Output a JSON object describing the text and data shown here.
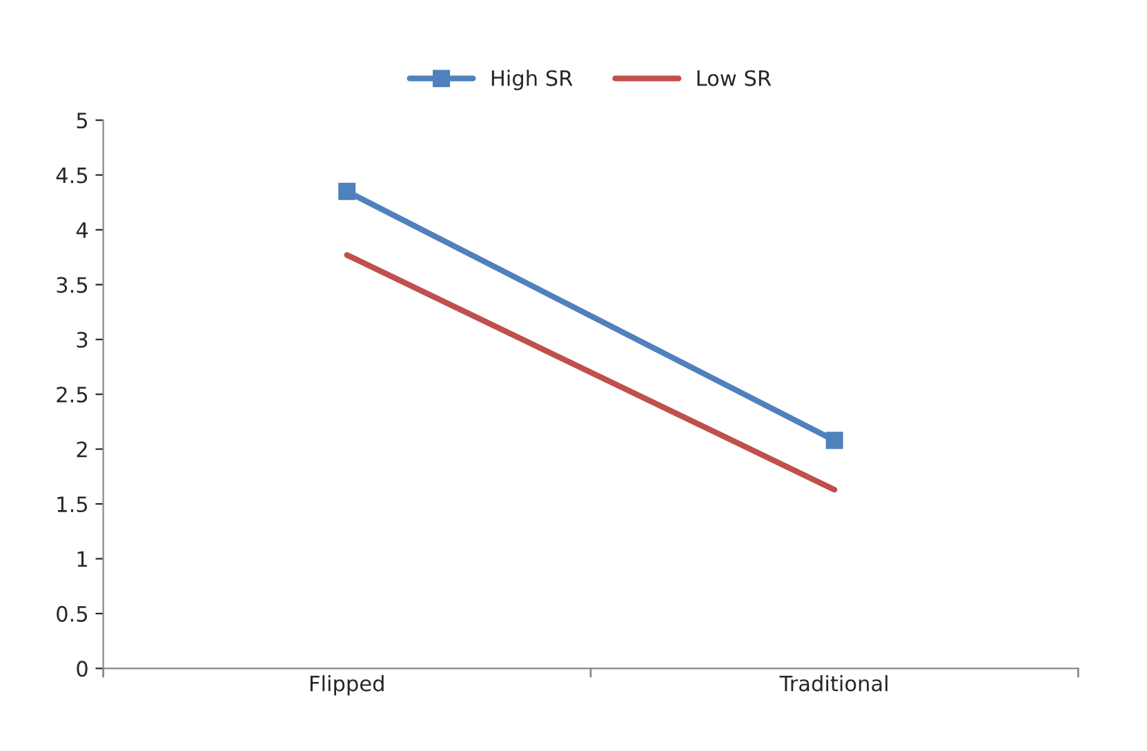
{
  "chart_data": {
    "type": "line",
    "categories": [
      "Flipped",
      "Traditional"
    ],
    "series": [
      {
        "name": "High SR",
        "color": "#4f81bd",
        "values": [
          4.35,
          2.08
        ],
        "marker": "square"
      },
      {
        "name": "Low SR",
        "color": "#c0504d",
        "values": [
          3.77,
          1.63
        ],
        "marker": "none"
      }
    ],
    "ylim": [
      0,
      5
    ],
    "yticks": [
      0,
      0.5,
      1,
      1.5,
      2,
      2.5,
      3,
      3.5,
      4,
      4.5,
      5
    ],
    "legend": "top",
    "line_style": "solid"
  }
}
